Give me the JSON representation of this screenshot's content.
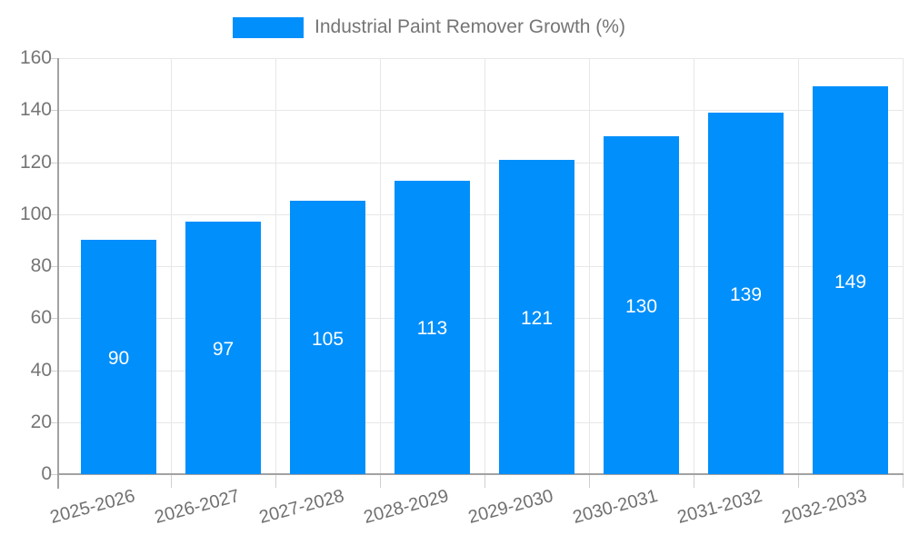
{
  "legend": {
    "label": "Industrial Paint Remover Growth (%)"
  },
  "chart_data": {
    "type": "bar",
    "title": "Industrial Paint Remover Growth (%)",
    "categories": [
      "2025-2026",
      "2026-2027",
      "2027-2028",
      "2028-2029",
      "2029-2030",
      "2030-2031",
      "2031-2032",
      "2032-2033"
    ],
    "series": [
      {
        "name": "Industrial Paint Remover Growth (%)",
        "values": [
          90,
          97,
          105,
          113,
          121,
          130,
          139,
          149
        ]
      }
    ],
    "xlabel": "",
    "ylabel": "",
    "ylim": [
      0,
      160
    ],
    "yticks": [
      0,
      20,
      40,
      60,
      80,
      100,
      120,
      140,
      160
    ],
    "grid": true,
    "legend_position": "top",
    "x_label_rotation_deg": -15,
    "colors": {
      "bar": "#008FFB",
      "value_label": "#ffffff",
      "axis_text": "#757575",
      "gridline": "#e7e7e7",
      "axis_line": "#a2a2a2"
    }
  }
}
